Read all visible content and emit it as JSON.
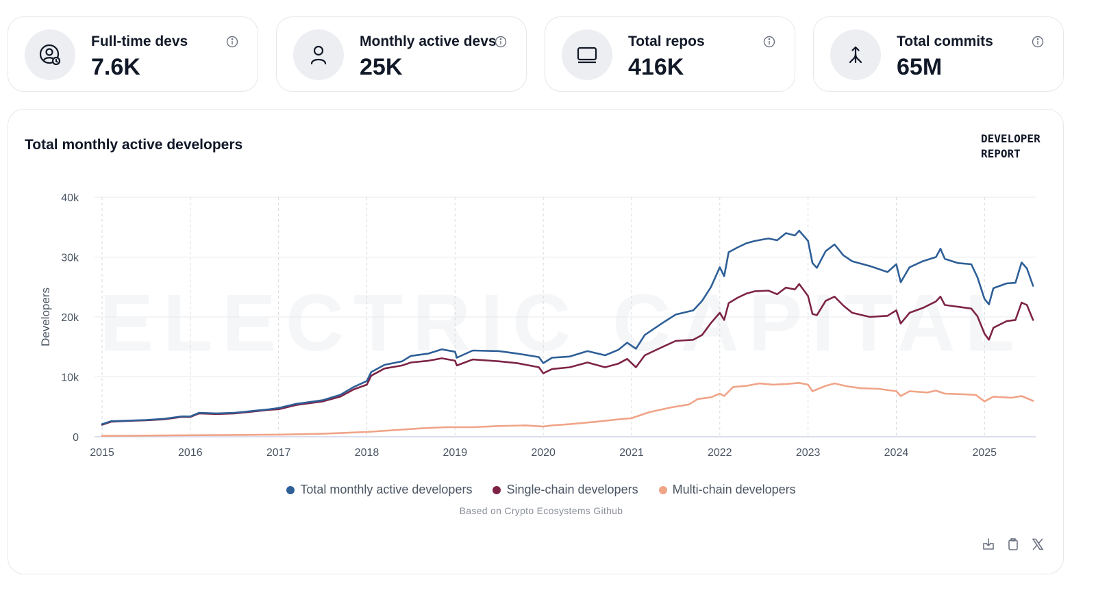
{
  "stats": [
    {
      "label": "Full-time devs",
      "value": "7.6K",
      "icon": "user-clock-icon"
    },
    {
      "label": "Monthly active devs",
      "value": "25K",
      "icon": "user-icon"
    },
    {
      "label": "Total repos",
      "value": "416K",
      "icon": "laptop-icon"
    },
    {
      "label": "Total commits",
      "value": "65M",
      "icon": "git-merge-icon"
    }
  ],
  "panel": {
    "title": "Total monthly active developers",
    "brand_line1": "DEVELOPER",
    "brand_line2": "REPORT",
    "watermark": "ELECTRIC CAPITAL",
    "source": "Based on Crypto Ecosystems Github"
  },
  "toolbar": [
    "download-icon",
    "copy-icon",
    "x-share-icon"
  ],
  "chart_data": {
    "type": "line",
    "title": "Total monthly active developers",
    "ylabel": "Developers",
    "xlabel": "",
    "ylim": [
      0,
      40000
    ],
    "yticks": [
      {
        "v": 0,
        "label": "0"
      },
      {
        "v": 10000,
        "label": "10k"
      },
      {
        "v": 20000,
        "label": "20k"
      },
      {
        "v": 30000,
        "label": "30k"
      },
      {
        "v": 40000,
        "label": "40k"
      }
    ],
    "xlim": [
      2015,
      2025.58
    ],
    "xticks": [
      {
        "v": 2015,
        "label": "2015"
      },
      {
        "v": 2016,
        "label": "2016"
      },
      {
        "v": 2017,
        "label": "2017"
      },
      {
        "v": 2018,
        "label": "2018"
      },
      {
        "v": 2019,
        "label": "2019"
      },
      {
        "v": 2020,
        "label": "2020"
      },
      {
        "v": 2021,
        "label": "2021"
      },
      {
        "v": 2022,
        "label": "2022"
      },
      {
        "v": 2023,
        "label": "2023"
      },
      {
        "v": 2024,
        "label": "2024"
      },
      {
        "v": 2025,
        "label": "2025"
      }
    ],
    "grid": true,
    "legend_position": "bottom-center",
    "series": [
      {
        "name": "Total monthly active developers",
        "color": "#2e5f97",
        "points": [
          [
            2015.0,
            2100
          ],
          [
            2015.1,
            2600
          ],
          [
            2015.3,
            2700
          ],
          [
            2015.5,
            2800
          ],
          [
            2015.7,
            3000
          ],
          [
            2015.9,
            3400
          ],
          [
            2016.0,
            3400
          ],
          [
            2016.1,
            4000
          ],
          [
            2016.3,
            3900
          ],
          [
            2016.5,
            4000
          ],
          [
            2016.7,
            4300
          ],
          [
            2016.9,
            4600
          ],
          [
            2017.0,
            4800
          ],
          [
            2017.2,
            5500
          ],
          [
            2017.4,
            5900
          ],
          [
            2017.5,
            6100
          ],
          [
            2017.7,
            7000
          ],
          [
            2017.85,
            8300
          ],
          [
            2018.0,
            9300
          ],
          [
            2018.05,
            10800
          ],
          [
            2018.2,
            12000
          ],
          [
            2018.4,
            12600
          ],
          [
            2018.5,
            13500
          ],
          [
            2018.7,
            13900
          ],
          [
            2018.85,
            14600
          ],
          [
            2019.0,
            14200
          ],
          [
            2019.02,
            13200
          ],
          [
            2019.2,
            14400
          ],
          [
            2019.5,
            14300
          ],
          [
            2019.7,
            13900
          ],
          [
            2019.95,
            13300
          ],
          [
            2020.0,
            12300
          ],
          [
            2020.1,
            13200
          ],
          [
            2020.3,
            13400
          ],
          [
            2020.5,
            14300
          ],
          [
            2020.7,
            13600
          ],
          [
            2020.85,
            14500
          ],
          [
            2020.95,
            15700
          ],
          [
            2021.05,
            14700
          ],
          [
            2021.15,
            17000
          ],
          [
            2021.35,
            19000
          ],
          [
            2021.5,
            20400
          ],
          [
            2021.7,
            21100
          ],
          [
            2021.8,
            22700
          ],
          [
            2021.9,
            25000
          ],
          [
            2022.0,
            28300
          ],
          [
            2022.05,
            26800
          ],
          [
            2022.1,
            30800
          ],
          [
            2022.2,
            31600
          ],
          [
            2022.3,
            32300
          ],
          [
            2022.4,
            32700
          ],
          [
            2022.55,
            33100
          ],
          [
            2022.65,
            32800
          ],
          [
            2022.75,
            34000
          ],
          [
            2022.85,
            33600
          ],
          [
            2022.9,
            34400
          ],
          [
            2023.0,
            32700
          ],
          [
            2023.05,
            29000
          ],
          [
            2023.1,
            28200
          ],
          [
            2023.2,
            31000
          ],
          [
            2023.3,
            32100
          ],
          [
            2023.4,
            30300
          ],
          [
            2023.5,
            29300
          ],
          [
            2023.7,
            28500
          ],
          [
            2023.9,
            27500
          ],
          [
            2024.0,
            28800
          ],
          [
            2024.05,
            25800
          ],
          [
            2024.15,
            28300
          ],
          [
            2024.3,
            29300
          ],
          [
            2024.45,
            30000
          ],
          [
            2024.5,
            31400
          ],
          [
            2024.55,
            29700
          ],
          [
            2024.7,
            29000
          ],
          [
            2024.85,
            28800
          ],
          [
            2024.92,
            26600
          ],
          [
            2025.0,
            23000
          ],
          [
            2025.05,
            22100
          ],
          [
            2025.1,
            24800
          ],
          [
            2025.25,
            25600
          ],
          [
            2025.35,
            25700
          ],
          [
            2025.42,
            29100
          ],
          [
            2025.48,
            28100
          ],
          [
            2025.55,
            25200
          ]
        ]
      },
      {
        "name": "Single-chain developers",
        "color": "#7d2446",
        "points": [
          [
            2015.0,
            2000
          ],
          [
            2015.1,
            2500
          ],
          [
            2015.3,
            2650
          ],
          [
            2015.5,
            2750
          ],
          [
            2015.7,
            2900
          ],
          [
            2015.9,
            3300
          ],
          [
            2016.0,
            3300
          ],
          [
            2016.1,
            3900
          ],
          [
            2016.3,
            3800
          ],
          [
            2016.5,
            3900
          ],
          [
            2016.7,
            4200
          ],
          [
            2016.9,
            4500
          ],
          [
            2017.0,
            4600
          ],
          [
            2017.2,
            5300
          ],
          [
            2017.4,
            5700
          ],
          [
            2017.5,
            5900
          ],
          [
            2017.7,
            6700
          ],
          [
            2017.85,
            7900
          ],
          [
            2018.0,
            8700
          ],
          [
            2018.05,
            10200
          ],
          [
            2018.2,
            11400
          ],
          [
            2018.4,
            11900
          ],
          [
            2018.5,
            12400
          ],
          [
            2018.7,
            12700
          ],
          [
            2018.85,
            13100
          ],
          [
            2019.0,
            12700
          ],
          [
            2019.02,
            11900
          ],
          [
            2019.2,
            12900
          ],
          [
            2019.5,
            12600
          ],
          [
            2019.7,
            12300
          ],
          [
            2019.95,
            11600
          ],
          [
            2020.0,
            10600
          ],
          [
            2020.1,
            11300
          ],
          [
            2020.3,
            11600
          ],
          [
            2020.5,
            12400
          ],
          [
            2020.7,
            11600
          ],
          [
            2020.85,
            12200
          ],
          [
            2020.95,
            13000
          ],
          [
            2021.05,
            11600
          ],
          [
            2021.15,
            13600
          ],
          [
            2021.35,
            15000
          ],
          [
            2021.5,
            16000
          ],
          [
            2021.7,
            16200
          ],
          [
            2021.8,
            17000
          ],
          [
            2021.9,
            19000
          ],
          [
            2022.0,
            20700
          ],
          [
            2022.05,
            19500
          ],
          [
            2022.1,
            22300
          ],
          [
            2022.2,
            23200
          ],
          [
            2022.3,
            23900
          ],
          [
            2022.4,
            24300
          ],
          [
            2022.55,
            24400
          ],
          [
            2022.65,
            23800
          ],
          [
            2022.75,
            24900
          ],
          [
            2022.85,
            24600
          ],
          [
            2022.9,
            25500
          ],
          [
            2023.0,
            23500
          ],
          [
            2023.05,
            20500
          ],
          [
            2023.1,
            20300
          ],
          [
            2023.2,
            22700
          ],
          [
            2023.3,
            23400
          ],
          [
            2023.4,
            21900
          ],
          [
            2023.5,
            20700
          ],
          [
            2023.7,
            20000
          ],
          [
            2023.9,
            20200
          ],
          [
            2024.0,
            21100
          ],
          [
            2024.05,
            18900
          ],
          [
            2024.15,
            20700
          ],
          [
            2024.3,
            21500
          ],
          [
            2024.45,
            22600
          ],
          [
            2024.5,
            23400
          ],
          [
            2024.55,
            22000
          ],
          [
            2024.7,
            21700
          ],
          [
            2024.85,
            21400
          ],
          [
            2024.92,
            20100
          ],
          [
            2025.0,
            17200
          ],
          [
            2025.05,
            16200
          ],
          [
            2025.1,
            18200
          ],
          [
            2025.25,
            19300
          ],
          [
            2025.35,
            19500
          ],
          [
            2025.42,
            22400
          ],
          [
            2025.48,
            22000
          ],
          [
            2025.55,
            19500
          ]
        ]
      },
      {
        "name": "Multi-chain developers",
        "color": "#f0a488",
        "points": [
          [
            2015.0,
            150
          ],
          [
            2015.5,
            200
          ],
          [
            2016.0,
            250
          ],
          [
            2016.5,
            300
          ],
          [
            2017.0,
            350
          ],
          [
            2017.5,
            500
          ],
          [
            2018.0,
            800
          ],
          [
            2018.3,
            1100
          ],
          [
            2018.6,
            1400
          ],
          [
            2018.9,
            1600
          ],
          [
            2019.2,
            1600
          ],
          [
            2019.5,
            1800
          ],
          [
            2019.8,
            1900
          ],
          [
            2020.0,
            1700
          ],
          [
            2020.1,
            1900
          ],
          [
            2020.3,
            2100
          ],
          [
            2020.6,
            2500
          ],
          [
            2020.85,
            2900
          ],
          [
            2021.0,
            3100
          ],
          [
            2021.2,
            4100
          ],
          [
            2021.45,
            4900
          ],
          [
            2021.65,
            5400
          ],
          [
            2021.75,
            6300
          ],
          [
            2021.9,
            6600
          ],
          [
            2022.0,
            7200
          ],
          [
            2022.05,
            6800
          ],
          [
            2022.15,
            8300
          ],
          [
            2022.3,
            8500
          ],
          [
            2022.45,
            8900
          ],
          [
            2022.6,
            8700
          ],
          [
            2022.75,
            8800
          ],
          [
            2022.9,
            9000
          ],
          [
            2023.0,
            8700
          ],
          [
            2023.05,
            7600
          ],
          [
            2023.2,
            8500
          ],
          [
            2023.3,
            8900
          ],
          [
            2023.45,
            8400
          ],
          [
            2023.6,
            8100
          ],
          [
            2023.8,
            8000
          ],
          [
            2024.0,
            7600
          ],
          [
            2024.05,
            6800
          ],
          [
            2024.15,
            7600
          ],
          [
            2024.35,
            7400
          ],
          [
            2024.45,
            7700
          ],
          [
            2024.55,
            7200
          ],
          [
            2024.75,
            7100
          ],
          [
            2024.9,
            7000
          ],
          [
            2025.0,
            5900
          ],
          [
            2025.1,
            6700
          ],
          [
            2025.3,
            6500
          ],
          [
            2025.42,
            6800
          ],
          [
            2025.55,
            6000
          ]
        ]
      }
    ]
  }
}
